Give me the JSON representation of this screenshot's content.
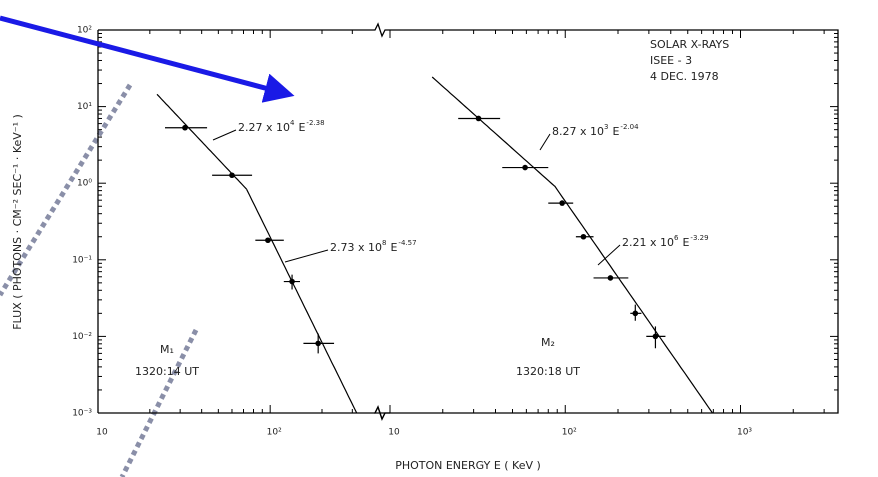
{
  "chart_data": {
    "type": "scatter",
    "log_x": true,
    "log_y": true,
    "color": "#000000",
    "y_label": "FLUX ( PHOTONS · CM⁻² SEC⁻¹ · KeV⁻¹ )",
    "x_label": "PHOTON  ENERGY  E  ( KeV )",
    "annotations": [
      "SOLAR  X-RAYS",
      "ISEE - 3",
      "4 DEC. 1978"
    ],
    "ylim": [
      0.001,
      100
    ],
    "yticks": [
      {
        "value": 100,
        "label": "10²"
      },
      {
        "value": 10,
        "label": "10¹"
      },
      {
        "value": 1,
        "label": "10⁰"
      },
      {
        "value": 0.1,
        "label": "10⁻¹"
      },
      {
        "value": 0.01,
        "label": "10⁻²"
      },
      {
        "value": 0.001,
        "label": "10⁻³"
      }
    ],
    "panels": [
      {
        "flare_label": "M₁",
        "time": "1320:14 UT",
        "xlim": [
          10,
          380
        ],
        "xticks": [
          10,
          {
            "value": 100,
            "label": "10²"
          }
        ],
        "x": [
          32,
          60,
          97,
          134,
          190
        ],
        "values": [
          5.3,
          1.27,
          0.18,
          0.052,
          0.0081
        ],
        "x_low": [
          24.5,
          46,
          82,
          120,
          156
        ],
        "x_high": [
          43,
          78.5,
          120,
          149,
          235
        ],
        "y_low": [
          null,
          null,
          null,
          0.041,
          0.006
        ],
        "y_high": [
          null,
          null,
          null,
          0.064,
          0.0109
        ],
        "fits": [
          {
            "label_base": "2.27 x 10",
            "label_power": 4,
            "label_E": "E",
            "coefficient": 22700,
            "exponent": -2.38,
            "x_range": [
              22,
              73
            ]
          },
          {
            "label_base": "2.73 x 10",
            "label_power": 8,
            "label_E": "E",
            "coefficient": 273000000,
            "exponent": -4.57,
            "x_range": [
              73,
              318
            ]
          }
        ]
      },
      {
        "flare_label": "M₂",
        "time": "1320:18 UT",
        "xlim": [
          10,
          3600
        ],
        "xticks": [
          10,
          {
            "value": 100,
            "label": "10²"
          },
          {
            "value": 1000,
            "label": "10³"
          }
        ],
        "x": [
          32,
          59,
          96,
          127,
          181,
          251,
          327
        ],
        "values": [
          7.0,
          1.6,
          0.55,
          0.2,
          0.058,
          0.02,
          0.01
        ],
        "x_low": [
          24.5,
          43.7,
          80,
          115,
          145,
          235,
          290
        ],
        "x_high": [
          42.5,
          80,
          111,
          145,
          229,
          272,
          373
        ],
        "y_low": [
          null,
          null,
          null,
          null,
          null,
          0.016,
          0.007
        ],
        "y_high": [
          null,
          null,
          null,
          null,
          null,
          0.026,
          0.0135
        ],
        "fits": [
          {
            "label_base": "8.27 x 10",
            "label_power": 3,
            "label_E": "E",
            "coefficient": 8270,
            "exponent": -2.04,
            "x_range": [
              17.4,
              87
            ]
          },
          {
            "label_base": "2.21 x 10",
            "label_power": 6,
            "label_E": "E",
            "coefficient": 2210000,
            "exponent": -3.29,
            "x_range": [
              87,
              692
            ]
          }
        ]
      }
    ]
  }
}
